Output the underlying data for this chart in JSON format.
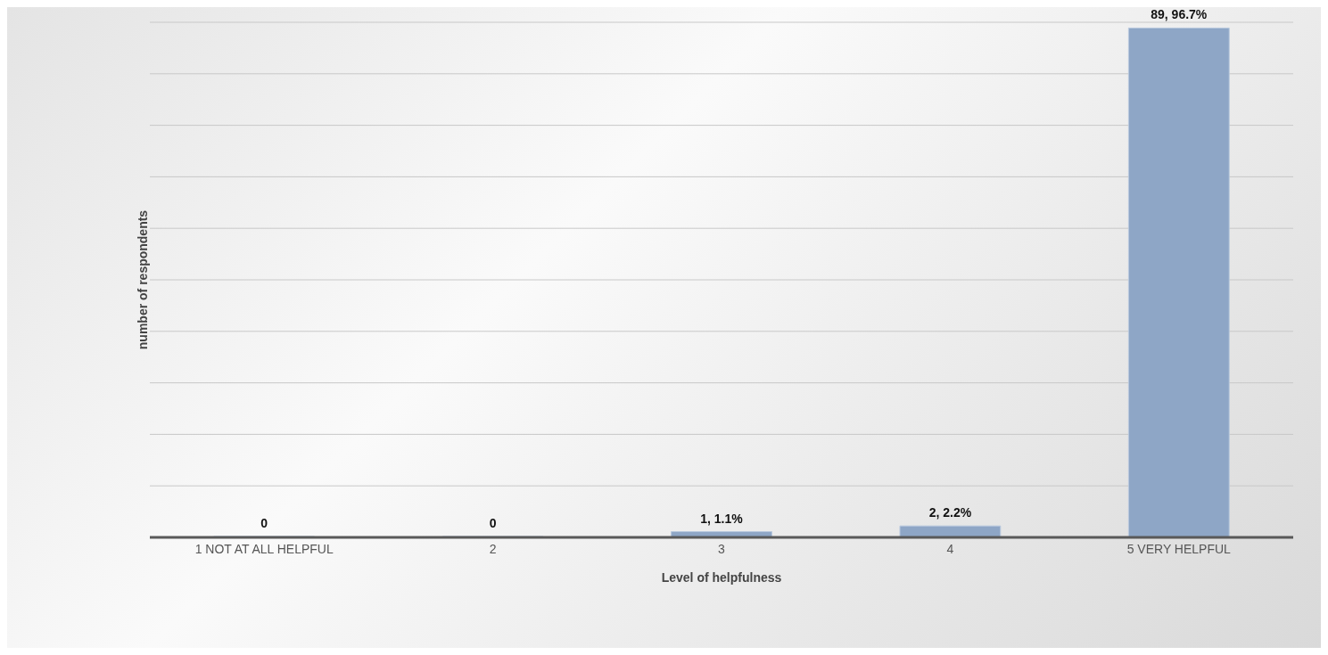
{
  "chart_data": {
    "type": "bar",
    "xlabel": "Level of helpfulness",
    "ylabel": "number of respondents",
    "categories": [
      "1 NOT AT ALL HELPFUL",
      "2",
      "3",
      "4",
      "5 VERY HELPFUL"
    ],
    "values": [
      0,
      0,
      1,
      2,
      89
    ],
    "color": "#8ea6c6",
    "value_labels": [
      "0",
      "0",
      "1, 1.1%",
      "2, 2.2%",
      "89, 96.7%"
    ],
    "grid": "y"
  }
}
